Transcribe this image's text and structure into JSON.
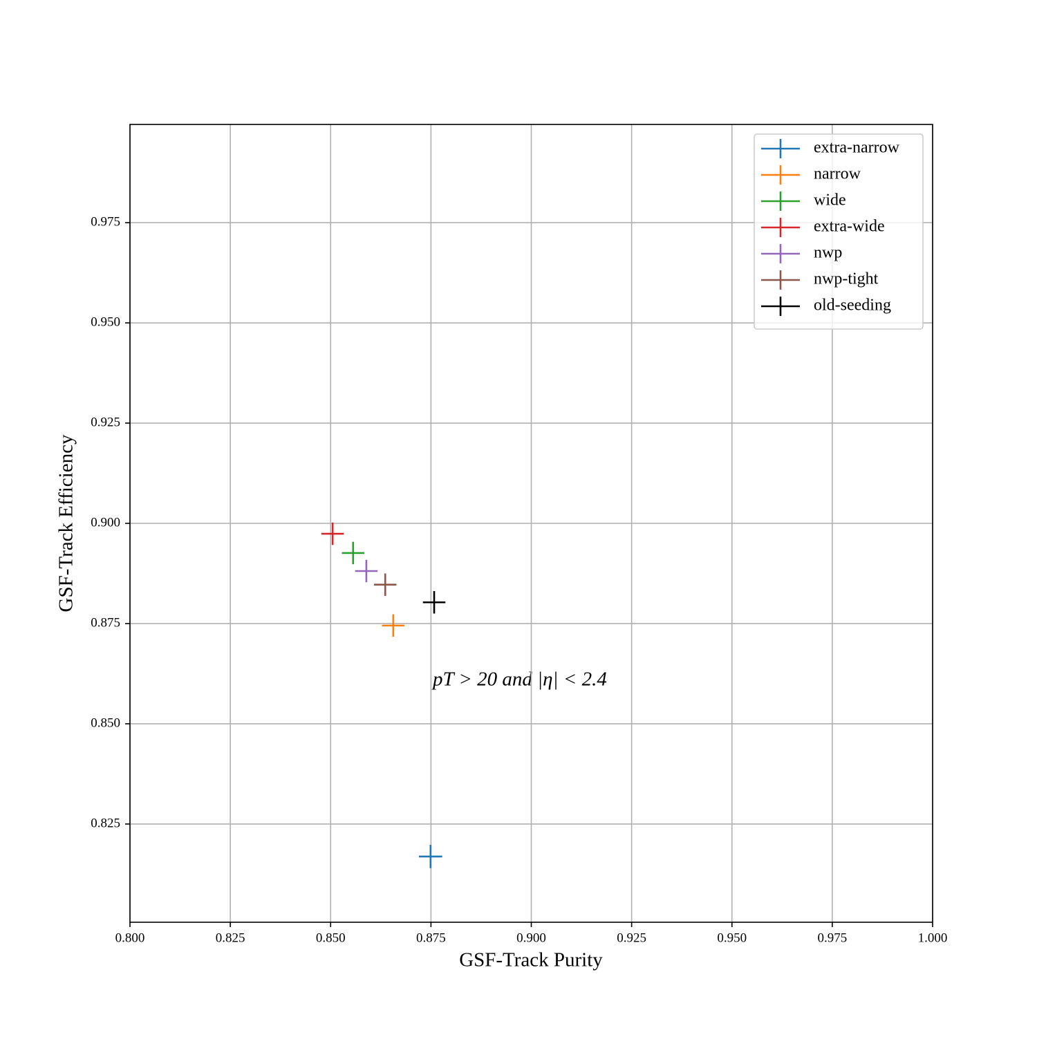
{
  "chart_data": {
    "type": "scatter",
    "xlabel": "GSF-Track Purity",
    "ylabel": "GSF-Track Efficiency",
    "annotation": "pT > 20 and |η| < 2.4",
    "xlim": [
      0.8,
      1.0
    ],
    "ylim": [
      0.8005,
      0.9995
    ],
    "xticks": [
      {
        "value": 0.8,
        "label": "0.800"
      },
      0.825,
      {
        "value": 0.85,
        "label": "0.850"
      },
      0.875,
      {
        "value": 0.9,
        "label": "0.900"
      },
      0.925,
      {
        "value": 0.95,
        "label": "0.950"
      },
      0.975,
      {
        "value": 1.0,
        "label": "1.000"
      }
    ],
    "yticks": [
      0.825,
      {
        "value": 0.85,
        "label": "0.850"
      },
      0.875,
      {
        "value": 0.9,
        "label": "0.900"
      },
      0.925,
      {
        "value": 0.95,
        "label": "0.950"
      },
      0.975
    ],
    "grid": true,
    "legend": "upper right",
    "series": [
      {
        "name": "extra-narrow",
        "color": "#1f77b4",
        "x": [
          0.8749
        ],
        "values": [
          0.8169
        ],
        "xerr": [
          0.0029
        ],
        "yerr": [
          0.0029
        ]
      },
      {
        "name": "narrow",
        "color": "#ff7f0e",
        "x": [
          0.8656
        ],
        "values": [
          0.8745
        ],
        "xerr": [
          0.0028
        ],
        "yerr": [
          0.0028
        ]
      },
      {
        "name": "wide",
        "color": "#2ca02c",
        "x": [
          0.8556
        ],
        "values": [
          0.8926
        ],
        "xerr": [
          0.0028
        ],
        "yerr": [
          0.0028
        ]
      },
      {
        "name": "extra-wide",
        "color": "#d62728",
        "x": [
          0.8505
        ],
        "values": [
          0.8974
        ],
        "xerr": [
          0.0028
        ],
        "yerr": [
          0.0028
        ]
      },
      {
        "name": "nwp",
        "color": "#9467bd",
        "x": [
          0.8589
        ],
        "values": [
          0.8881
        ],
        "xerr": [
          0.0028
        ],
        "yerr": [
          0.0028
        ]
      },
      {
        "name": "nwp-tight",
        "color": "#8c564b",
        "x": [
          0.8636
        ],
        "values": [
          0.8847
        ],
        "xerr": [
          0.0028
        ],
        "yerr": [
          0.0028
        ]
      },
      {
        "name": "old-seeding",
        "color": "#000000",
        "x": [
          0.8758
        ],
        "values": [
          0.8803
        ],
        "xerr": [
          0.0028
        ],
        "yerr": [
          0.0028
        ]
      }
    ]
  }
}
